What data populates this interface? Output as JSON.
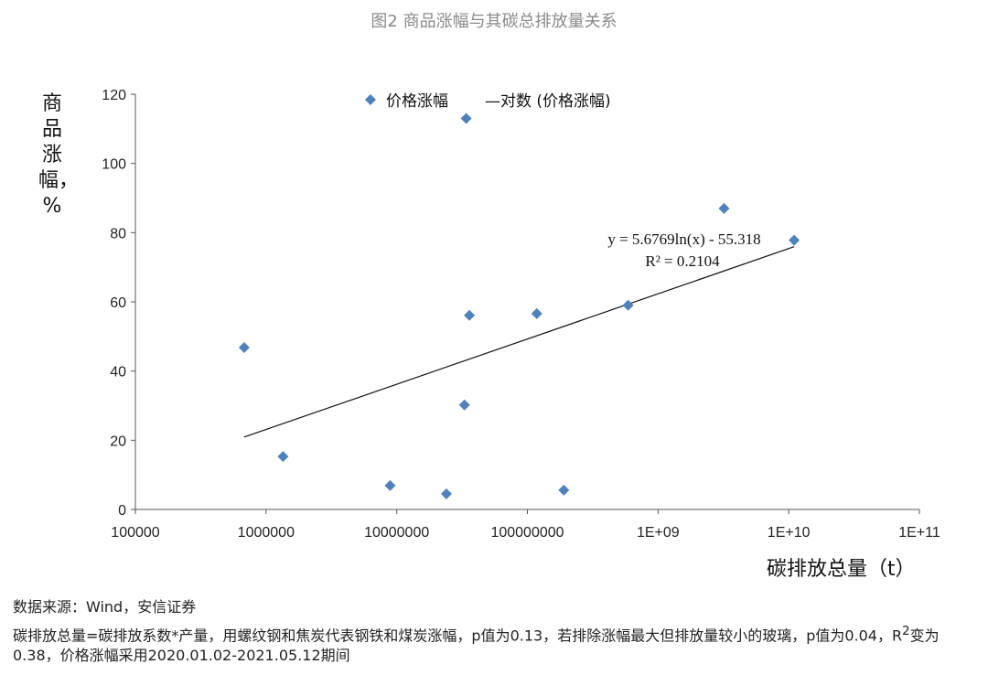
{
  "chart_data": {
    "type": "scatter",
    "title": "图2 商品涨幅与其碳总排放量关系",
    "xlabel": "碳排放总量（t）",
    "ylabel": "商品涨幅，%",
    "xscale": "log",
    "xlim": [
      100000,
      100000000000
    ],
    "ylim": [
      0,
      120
    ],
    "xticks": [
      "100000",
      "1000000",
      "10000000",
      "100000000",
      "1E+09",
      "1E+10",
      "1E+11"
    ],
    "yticks": [
      "0",
      "20",
      "40",
      "60",
      "80",
      "100",
      "120"
    ],
    "legend": {
      "position": "top",
      "series_label": "价格涨幅",
      "trend_label": "—对数 (价格涨幅)"
    },
    "series": [
      {
        "name": "价格涨幅",
        "color": "#4F81BD",
        "points": [
          [
            680000,
            46.8
          ],
          [
            1350000,
            15.3
          ],
          [
            8900000,
            6.9
          ],
          [
            24000000,
            4.5
          ],
          [
            33000000,
            30.2
          ],
          [
            34000000,
            113
          ],
          [
            36000000,
            56.1
          ],
          [
            118000000,
            56.6
          ],
          [
            190000000,
            5.6
          ],
          [
            590000000,
            59
          ],
          [
            3200000000,
            87
          ],
          [
            11000000000,
            77.8
          ]
        ]
      }
    ],
    "trendline": {
      "type": "log",
      "a": 5.6769,
      "b": -55.318,
      "x_range": [
        680000,
        11000000000
      ],
      "equation": "y = 5.6769ln(x) - 55.318",
      "r2": "R² = 0.2104"
    }
  },
  "footer": {
    "source": "数据来源：Wind，安信证券",
    "note_a": "碳排放总量=碳排放系数*产量，用螺纹钢和焦炭代表钢铁和煤炭涨幅，p值为0.13，若排除涨幅最大但排放量较小的玻璃，p值为0.04，R",
    "note_sup": "2",
    "note_b": "变为0.38，价格涨幅采用2020.01.02-2021.05.12期间"
  }
}
